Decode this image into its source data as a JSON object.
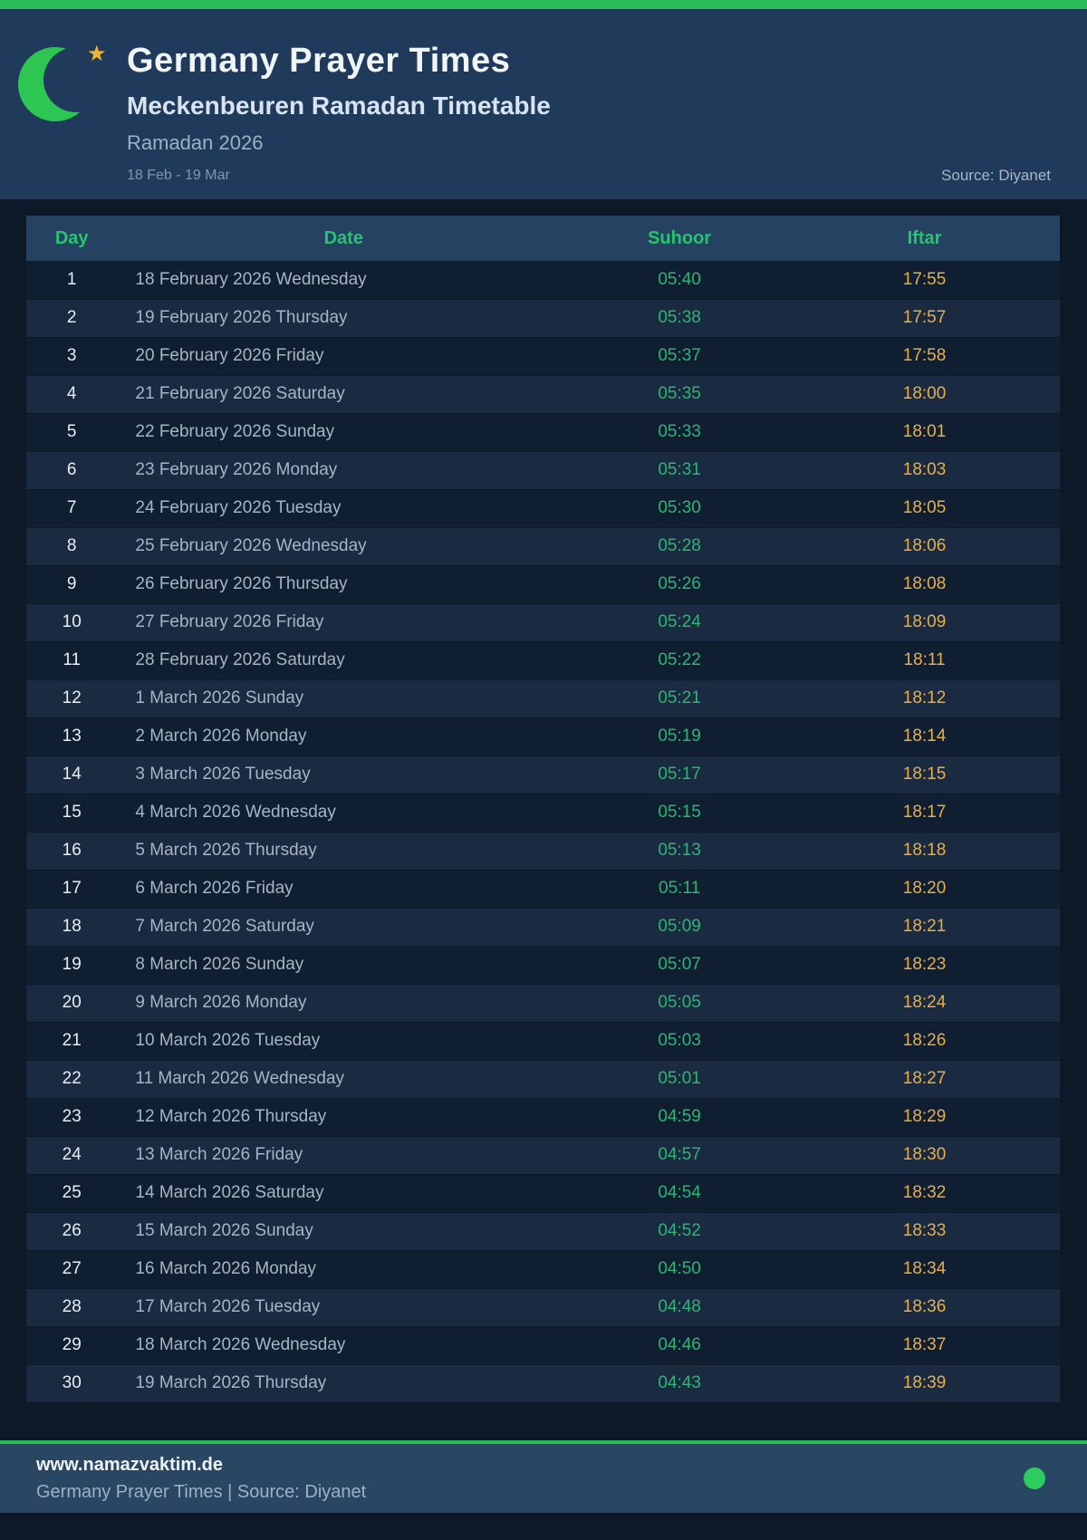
{
  "colors": {
    "accent_green": "#2abd57",
    "table_header_green": "#26c46d",
    "suhoor_green": "#2eb473",
    "iftar_amber": "#e8af49",
    "hero_bg": "#1f3a5b",
    "page_bg": "#0d1829",
    "footer_bg": "#294663",
    "star_gold": "#f2b631"
  },
  "header": {
    "title": "Germany Prayer Times",
    "subtitle": "Meckenbeuren Ramadan Timetable",
    "period": "Ramadan 2026",
    "date_range": "18 Feb - 19 Mar",
    "source": "Source: Diyanet",
    "crescent_icon": "crescent-moon",
    "star_icon": "star"
  },
  "table": {
    "columns": [
      "Day",
      "Date",
      "Suhoor",
      "Iftar"
    ],
    "rows": [
      {
        "day": "1",
        "date": "18 February 2026 Wednesday",
        "suhoor": "05:40",
        "iftar": "17:55"
      },
      {
        "day": "2",
        "date": "19 February 2026 Thursday",
        "suhoor": "05:38",
        "iftar": "17:57"
      },
      {
        "day": "3",
        "date": "20 February 2026 Friday",
        "suhoor": "05:37",
        "iftar": "17:58"
      },
      {
        "day": "4",
        "date": "21 February 2026 Saturday",
        "suhoor": "05:35",
        "iftar": "18:00"
      },
      {
        "day": "5",
        "date": "22 February 2026 Sunday",
        "suhoor": "05:33",
        "iftar": "18:01"
      },
      {
        "day": "6",
        "date": "23 February 2026 Monday",
        "suhoor": "05:31",
        "iftar": "18:03"
      },
      {
        "day": "7",
        "date": "24 February 2026 Tuesday",
        "suhoor": "05:30",
        "iftar": "18:05"
      },
      {
        "day": "8",
        "date": "25 February 2026 Wednesday",
        "suhoor": "05:28",
        "iftar": "18:06"
      },
      {
        "day": "9",
        "date": "26 February 2026 Thursday",
        "suhoor": "05:26",
        "iftar": "18:08"
      },
      {
        "day": "10",
        "date": "27 February 2026 Friday",
        "suhoor": "05:24",
        "iftar": "18:09"
      },
      {
        "day": "11",
        "date": "28 February 2026 Saturday",
        "suhoor": "05:22",
        "iftar": "18:11"
      },
      {
        "day": "12",
        "date": "1 March 2026 Sunday",
        "suhoor": "05:21",
        "iftar": "18:12"
      },
      {
        "day": "13",
        "date": "2 March 2026 Monday",
        "suhoor": "05:19",
        "iftar": "18:14"
      },
      {
        "day": "14",
        "date": "3 March 2026 Tuesday",
        "suhoor": "05:17",
        "iftar": "18:15"
      },
      {
        "day": "15",
        "date": "4 March 2026 Wednesday",
        "suhoor": "05:15",
        "iftar": "18:17"
      },
      {
        "day": "16",
        "date": "5 March 2026 Thursday",
        "suhoor": "05:13",
        "iftar": "18:18"
      },
      {
        "day": "17",
        "date": "6 March 2026 Friday",
        "suhoor": "05:11",
        "iftar": "18:20"
      },
      {
        "day": "18",
        "date": "7 March 2026 Saturday",
        "suhoor": "05:09",
        "iftar": "18:21"
      },
      {
        "day": "19",
        "date": "8 March 2026 Sunday",
        "suhoor": "05:07",
        "iftar": "18:23"
      },
      {
        "day": "20",
        "date": "9 March 2026 Monday",
        "suhoor": "05:05",
        "iftar": "18:24"
      },
      {
        "day": "21",
        "date": "10 March 2026 Tuesday",
        "suhoor": "05:03",
        "iftar": "18:26"
      },
      {
        "day": "22",
        "date": "11 March 2026 Wednesday",
        "suhoor": "05:01",
        "iftar": "18:27"
      },
      {
        "day": "23",
        "date": "12 March 2026 Thursday",
        "suhoor": "04:59",
        "iftar": "18:29"
      },
      {
        "day": "24",
        "date": "13 March 2026 Friday",
        "suhoor": "04:57",
        "iftar": "18:30"
      },
      {
        "day": "25",
        "date": "14 March 2026 Saturday",
        "suhoor": "04:54",
        "iftar": "18:32"
      },
      {
        "day": "26",
        "date": "15 March 2026 Sunday",
        "suhoor": "04:52",
        "iftar": "18:33"
      },
      {
        "day": "27",
        "date": "16 March 2026 Monday",
        "suhoor": "04:50",
        "iftar": "18:34"
      },
      {
        "day": "28",
        "date": "17 March 2026 Tuesday",
        "suhoor": "04:48",
        "iftar": "18:36"
      },
      {
        "day": "29",
        "date": "18 March 2026 Wednesday",
        "suhoor": "04:46",
        "iftar": "18:37"
      },
      {
        "day": "30",
        "date": "19 March 2026 Thursday",
        "suhoor": "04:43",
        "iftar": "18:39"
      }
    ]
  },
  "footer": {
    "website": "www.namazvaktim.de",
    "tagline": "Germany Prayer Times | Source: Diyanet",
    "status_icon": "green-dot"
  }
}
